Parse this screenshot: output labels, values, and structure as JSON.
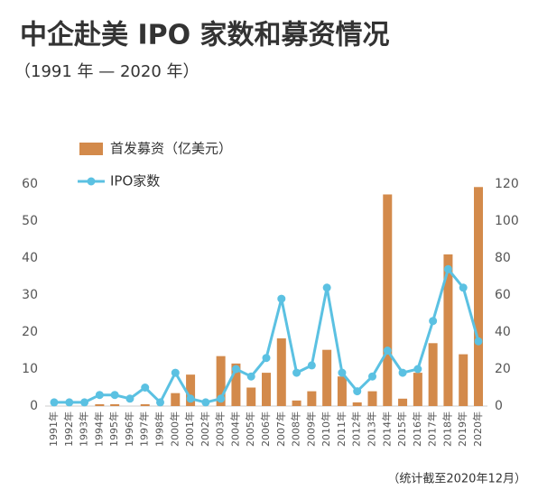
{
  "chart_data": {
    "type": "bar",
    "title": "中企赴美 IPO 家数和募资情况",
    "subtitle": "（1991 年 — 2020 年）",
    "note": "（统计截至2020年12月）",
    "categories": [
      "1991年",
      "1992年",
      "1993年",
      "1994年",
      "1995年",
      "1996年",
      "1997年",
      "1998年",
      "2000年",
      "2001年",
      "2002年",
      "2003年",
      "2004年",
      "2005年",
      "2006年",
      "2007年",
      "2008年",
      "2009年",
      "2010年",
      "2011年",
      "2012年",
      "2013年",
      "2014年",
      "2015年",
      "2016年",
      "2017年",
      "2018年",
      "2019年",
      "2020年"
    ],
    "series": [
      {
        "name": "首发募资（亿美元）",
        "type": "bar",
        "color": "#d38a4b",
        "values": [
          0,
          0,
          0,
          0.5,
          0.5,
          0,
          0.5,
          0,
          3.5,
          8.5,
          0,
          13.5,
          11.5,
          5,
          9,
          18.3,
          1.5,
          4,
          15.2,
          8,
          1,
          4,
          57.2,
          2,
          9,
          17,
          41,
          14,
          59.2
        ]
      },
      {
        "name": "IPO家数",
        "type": "line",
        "axis": "y2",
        "color": "#5bc1e2",
        "values": [
          2,
          2,
          2,
          6,
          6,
          4,
          10,
          2,
          18,
          4,
          2,
          4,
          20,
          16,
          26,
          58,
          18,
          22,
          64,
          18,
          8,
          16,
          30,
          18,
          20,
          46,
          74,
          64,
          35
        ]
      }
    ],
    "ylim": [
      0,
      60
    ],
    "yticks": [
      0,
      10,
      20,
      30,
      40,
      50,
      60
    ],
    "y2lim": [
      0,
      120
    ],
    "y2ticks": [
      0,
      20,
      40,
      60,
      80,
      100,
      120
    ]
  }
}
